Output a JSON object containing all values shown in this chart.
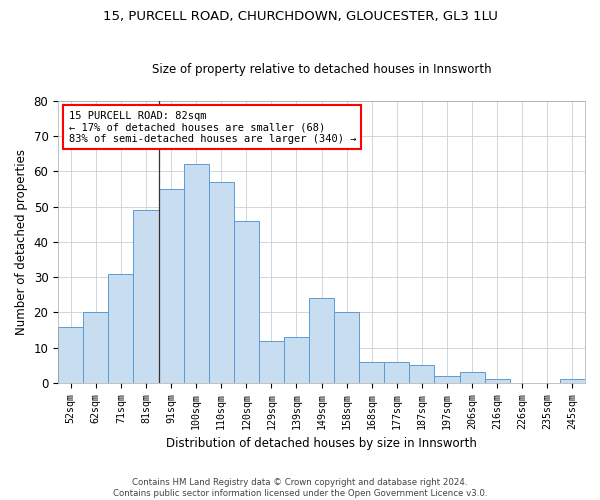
{
  "title": "15, PURCELL ROAD, CHURCHDOWN, GLOUCESTER, GL3 1LU",
  "subtitle": "Size of property relative to detached houses in Innsworth",
  "xlabel": "Distribution of detached houses by size in Innsworth",
  "ylabel": "Number of detached properties",
  "bar_color": "#c9ddf0",
  "bar_edge_color": "#5b9bd5",
  "background_color": "#ffffff",
  "grid_color": "#c8d0dc",
  "categories": [
    "52sqm",
    "62sqm",
    "71sqm",
    "81sqm",
    "91sqm",
    "100sqm",
    "110sqm",
    "120sqm",
    "129sqm",
    "139sqm",
    "149sqm",
    "158sqm",
    "168sqm",
    "177sqm",
    "187sqm",
    "197sqm",
    "206sqm",
    "216sqm",
    "226sqm",
    "235sqm",
    "245sqm"
  ],
  "values": [
    16,
    20,
    31,
    49,
    55,
    62,
    57,
    46,
    12,
    13,
    24,
    20,
    6,
    6,
    5,
    2,
    3,
    1,
    0,
    0,
    1
  ],
  "ylim": [
    0,
    80
  ],
  "yticks": [
    0,
    10,
    20,
    30,
    40,
    50,
    60,
    70,
    80
  ],
  "annotation_line1": "15 PURCELL ROAD: 82sqm",
  "annotation_line2": "← 17% of detached houses are smaller (68)",
  "annotation_line3": "83% of semi-detached houses are larger (340) →",
  "property_line_x": 3.5,
  "footnote_line1": "Contains HM Land Registry data © Crown copyright and database right 2024.",
  "footnote_line2": "Contains public sector information licensed under the Open Government Licence v3.0."
}
